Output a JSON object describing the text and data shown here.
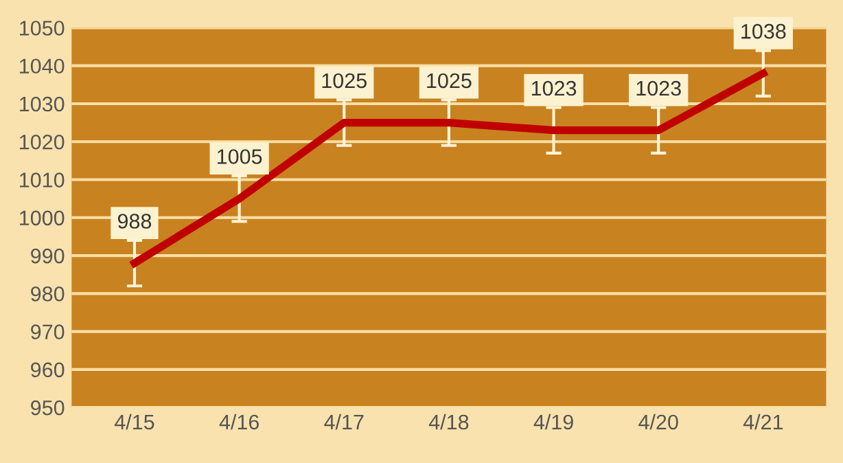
{
  "chart_data": {
    "type": "line",
    "categories": [
      "4/15",
      "4/16",
      "4/17",
      "4/18",
      "4/19",
      "4/20",
      "4/21"
    ],
    "series": [
      {
        "color": "#c00000",
        "values": [
          988,
          1005,
          1025,
          1025,
          1023,
          1023,
          1038
        ],
        "errors": [
          6,
          6,
          6,
          6,
          6,
          6,
          6
        ]
      }
    ],
    "ylim": [
      950,
      1050
    ],
    "yticks": [
      950,
      960,
      970,
      980,
      990,
      1000,
      1010,
      1020,
      1030,
      1040,
      1050
    ],
    "grid": "y",
    "data_labels": true,
    "legend": false,
    "marker": "none",
    "line_style": "solid"
  }
}
